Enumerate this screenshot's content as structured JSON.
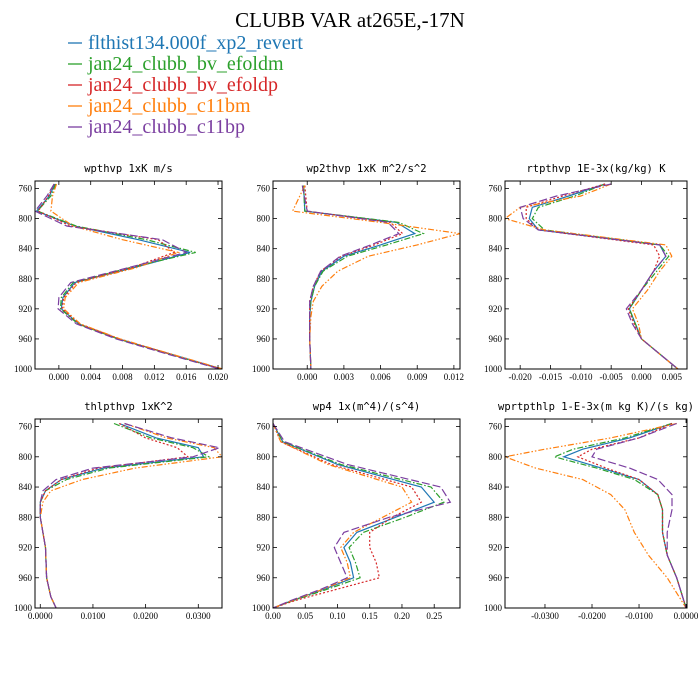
{
  "figure_title": "CLUBB VAR at265E,-17N",
  "series": [
    {
      "name": "flthist134.000f_xp2_revert",
      "color": "#1f77b4",
      "dash": ""
    },
    {
      "name": "jan24_clubb_bv_efoldm",
      "color": "#2ca02c",
      "dash": "6,2,1.5,2"
    },
    {
      "name": "jan24_clubb_bv_efoldp",
      "color": "#d62728",
      "dash": "2,2"
    },
    {
      "name": "jan24_clubb_c11bm",
      "color": "#ff7f0e",
      "dash": "6,2,1.5,2,1.5,2"
    },
    {
      "name": "jan24_clubb_c11bp",
      "color": "#7b3fa0",
      "dash": "8,3"
    }
  ],
  "chart_data": [
    {
      "type": "line",
      "title": "wpthvp  1xK m/s",
      "xlim": [
        -0.003,
        0.0205
      ],
      "ylim": [
        1000,
        750
      ],
      "xticks": [
        0.0,
        0.004,
        0.008,
        0.012,
        0.016,
        0.02
      ],
      "xtick_labels": [
        "0.000",
        "0.004",
        "0.008",
        "0.012",
        "0.016",
        "0.020"
      ],
      "yticks": [
        760,
        800,
        840,
        880,
        920,
        960,
        1000
      ],
      "levels": [
        754,
        770,
        790,
        810,
        828,
        845,
        865,
        885,
        905,
        920,
        940,
        960,
        980,
        1000
      ],
      "series_values": [
        [
          -0.0005,
          -0.0012,
          -0.0028,
          0.002,
          0.01,
          0.0165,
          0.0095,
          0.002,
          0.0005,
          0.0003,
          0.0025,
          0.0075,
          0.014,
          0.0205
        ],
        [
          -0.0004,
          -0.001,
          -0.0027,
          0.0022,
          0.011,
          0.0172,
          0.009,
          0.0018,
          0.0003,
          0.0002,
          0.0024,
          0.0074,
          0.0138,
          0.0203
        ],
        [
          -0.0006,
          -0.0013,
          -0.0026,
          0.0015,
          0.0125,
          0.0145,
          0.0092,
          0.0022,
          0.0006,
          0.0004,
          0.0026,
          0.0076,
          0.0139,
          0.0204
        ],
        [
          -0.0003,
          -0.0008,
          -0.001,
          0.0018,
          0.008,
          0.015,
          0.0098,
          0.0025,
          0.0008,
          0.0006,
          0.0027,
          0.0077,
          0.0141,
          0.0206
        ],
        [
          -0.0006,
          -0.0015,
          -0.003,
          0.001,
          0.013,
          0.016,
          0.0088,
          0.0015,
          0.0,
          -0.0001,
          0.0022,
          0.0072,
          0.0136,
          0.0202
        ]
      ]
    },
    {
      "type": "line",
      "title": "wp2thvp  1xK m^2/s^2",
      "xlim": [
        -0.0028,
        0.0125
      ],
      "ylim": [
        1000,
        750
      ],
      "xticks": [
        0.0,
        0.003,
        0.006,
        0.009,
        0.012
      ],
      "xtick_labels": [
        "0.000",
        "0.003",
        "0.006",
        "0.009",
        "0.012"
      ],
      "yticks": [
        760,
        800,
        840,
        880,
        920,
        960,
        1000
      ],
      "levels": [
        756,
        790,
        805,
        820,
        835,
        850,
        870,
        890,
        910,
        930,
        960,
        1000
      ],
      "series_values": [
        [
          -0.0003,
          -0.0002,
          0.0073,
          0.0088,
          0.006,
          0.003,
          0.0012,
          0.0006,
          0.0003,
          0.0002,
          0.0002,
          0.0003
        ],
        [
          -0.0003,
          -0.0002,
          0.0075,
          0.0095,
          0.0065,
          0.0033,
          0.0013,
          0.0006,
          0.0003,
          0.0002,
          0.0002,
          0.0003
        ],
        [
          -0.0002,
          0.0,
          0.0068,
          0.0078,
          0.0055,
          0.0028,
          0.0011,
          0.0005,
          0.0002,
          0.0002,
          0.0002,
          0.0003
        ],
        [
          -0.0002,
          -0.0012,
          0.006,
          0.0125,
          0.009,
          0.005,
          0.0025,
          0.0012,
          0.0005,
          0.0003,
          0.0002,
          0.0003
        ],
        [
          -0.0004,
          0.0,
          0.0066,
          0.0075,
          0.0052,
          0.0027,
          0.0011,
          0.0005,
          0.0002,
          0.0002,
          0.0002,
          0.0003
        ]
      ]
    },
    {
      "type": "line",
      "title": "rtpthvp  1E-3x(kg/kg) K",
      "xlim": [
        -0.0225,
        0.0075
      ],
      "ylim": [
        1000,
        750
      ],
      "xticks": [
        -0.02,
        -0.015,
        -0.01,
        -0.005,
        0.0,
        0.005
      ],
      "xtick_labels": [
        "-0.020",
        "-0.015",
        "-0.010",
        "-0.005",
        "0.000",
        "0.005"
      ],
      "yticks": [
        760,
        800,
        840,
        880,
        920,
        960,
        1000
      ],
      "levels": [
        754,
        770,
        785,
        800,
        815,
        835,
        850,
        870,
        895,
        920,
        940,
        960,
        980,
        1000
      ],
      "series_values": [
        [
          -0.006,
          -0.012,
          -0.018,
          -0.0185,
          -0.017,
          0.003,
          0.004,
          0.002,
          0.0,
          -0.002,
          -0.001,
          0.0,
          0.003,
          0.006
        ],
        [
          -0.006,
          -0.011,
          -0.017,
          -0.018,
          -0.016,
          0.003,
          0.0045,
          0.0025,
          0.0,
          -0.002,
          -0.001,
          0.0,
          0.003,
          0.006
        ],
        [
          -0.006,
          -0.013,
          -0.019,
          -0.019,
          -0.017,
          0.002,
          0.003,
          0.002,
          0.0,
          -0.0022,
          -0.0012,
          0.0,
          0.003,
          0.006
        ],
        [
          -0.005,
          -0.01,
          -0.02,
          -0.0225,
          -0.016,
          0.004,
          0.005,
          0.003,
          0.001,
          -0.0015,
          -0.0005,
          0.0,
          0.003,
          0.006
        ],
        [
          -0.005,
          -0.014,
          -0.02,
          -0.0195,
          -0.017,
          0.003,
          0.004,
          0.002,
          0.0,
          -0.0025,
          -0.0015,
          0.0,
          0.003,
          0.006
        ]
      ]
    },
    {
      "type": "line",
      "title": "thlpthvp  1xK^2",
      "xlim": [
        -0.001,
        0.0345
      ],
      "ylim": [
        1000,
        750
      ],
      "xticks": [
        0.0,
        0.01,
        0.02,
        0.03
      ],
      "xtick_labels": [
        "0.0000",
        "0.0100",
        "0.0200",
        "0.0300"
      ],
      "yticks": [
        760,
        800,
        840,
        880,
        920,
        960,
        1000
      ],
      "levels": [
        756,
        775,
        788,
        800,
        815,
        830,
        845,
        860,
        880,
        920,
        960,
        985,
        1000
      ],
      "series_values": [
        [
          0.015,
          0.022,
          0.03,
          0.031,
          0.012,
          0.004,
          0.001,
          0.0,
          0.0,
          0.001,
          0.0012,
          0.002,
          0.003
        ],
        [
          0.014,
          0.021,
          0.029,
          0.032,
          0.013,
          0.005,
          0.001,
          0.0,
          0.0,
          0.001,
          0.0012,
          0.002,
          0.003
        ],
        [
          0.015,
          0.02,
          0.026,
          0.028,
          0.011,
          0.004,
          0.001,
          0.0,
          0.0,
          0.001,
          0.0012,
          0.002,
          0.003
        ],
        [
          0.016,
          0.024,
          0.033,
          0.0345,
          0.018,
          0.008,
          0.002,
          0.0005,
          0.0,
          0.001,
          0.0012,
          0.002,
          0.003
        ],
        [
          0.016,
          0.025,
          0.034,
          0.029,
          0.01,
          0.003,
          0.0005,
          0.0,
          0.0,
          0.001,
          0.0012,
          0.002,
          0.003
        ]
      ]
    },
    {
      "type": "line",
      "title": "wp4  1x(m^4)/(s^4)",
      "xlim": [
        0.0,
        0.29
      ],
      "ylim": [
        1000,
        750
      ],
      "xticks": [
        0.0,
        0.05,
        0.1,
        0.15,
        0.2,
        0.25
      ],
      "xtick_labels": [
        "0.00",
        "0.05",
        "0.10",
        "0.15",
        "0.20",
        "0.25"
      ],
      "yticks": [
        760,
        800,
        840,
        880,
        920,
        960,
        1000
      ],
      "levels": [
        756,
        780,
        810,
        840,
        860,
        880,
        900,
        920,
        940,
        960,
        975,
        990,
        1000
      ],
      "series_values": [
        [
          0.0,
          0.015,
          0.1,
          0.23,
          0.25,
          0.19,
          0.13,
          0.11,
          0.12,
          0.125,
          0.08,
          0.03,
          0.0
        ],
        [
          0.0,
          0.015,
          0.105,
          0.245,
          0.265,
          0.205,
          0.14,
          0.118,
          0.128,
          0.135,
          0.085,
          0.032,
          0.0
        ],
        [
          0.0,
          0.012,
          0.09,
          0.215,
          0.23,
          0.185,
          0.15,
          0.15,
          0.16,
          0.165,
          0.1,
          0.035,
          0.0
        ],
        [
          0.0,
          0.012,
          0.085,
          0.2,
          0.215,
          0.17,
          0.125,
          0.105,
          0.115,
          0.12,
          0.078,
          0.03,
          0.0
        ],
        [
          0.0,
          0.018,
          0.115,
          0.26,
          0.275,
          0.18,
          0.11,
          0.095,
          0.105,
          0.115,
          0.075,
          0.028,
          0.0
        ]
      ]
    },
    {
      "type": "line",
      "title": "wprtpthlp  1-E-3x(m kg K)/(s kg)",
      "xlim": [
        -0.0385,
        0.0002
      ],
      "ylim": [
        1000,
        750
      ],
      "xticks": [
        -0.03,
        -0.02,
        -0.01,
        0.0
      ],
      "xtick_labels": [
        "-0.0300",
        "-0.0200",
        "-0.0100",
        "0.0000"
      ],
      "yticks": [
        760,
        800,
        840,
        880,
        920,
        960,
        1000
      ],
      "levels": [
        756,
        775,
        790,
        800,
        815,
        830,
        850,
        870,
        900,
        930,
        960,
        1000
      ],
      "series_values": [
        [
          -0.003,
          -0.012,
          -0.022,
          -0.026,
          -0.018,
          -0.01,
          -0.006,
          -0.005,
          -0.005,
          -0.004,
          -0.002,
          0.0
        ],
        [
          -0.003,
          -0.013,
          -0.024,
          -0.028,
          -0.019,
          -0.011,
          -0.006,
          -0.005,
          -0.005,
          -0.004,
          -0.002,
          0.0
        ],
        [
          -0.003,
          -0.01,
          -0.02,
          -0.023,
          -0.017,
          -0.01,
          -0.006,
          -0.005,
          -0.005,
          -0.004,
          -0.002,
          0.0
        ],
        [
          -0.002,
          -0.016,
          -0.03,
          -0.0385,
          -0.032,
          -0.022,
          -0.016,
          -0.013,
          -0.011,
          -0.008,
          -0.004,
          0.0
        ],
        [
          -0.002,
          -0.01,
          -0.019,
          -0.02,
          -0.012,
          -0.006,
          -0.003,
          -0.003,
          -0.004,
          -0.004,
          -0.002,
          0.0
        ]
      ]
    }
  ]
}
